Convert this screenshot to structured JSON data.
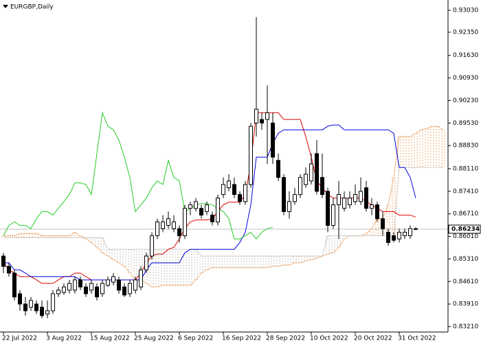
{
  "chart_data": {
    "type": "candlestick",
    "title": "EURGBP,Daily",
    "categories": [
      "22 Jul 2022",
      null,
      null,
      null,
      null,
      null,
      null,
      null,
      "3 Aug 2022",
      null,
      null,
      null,
      null,
      null,
      null,
      null,
      "15 Aug 2022",
      null,
      null,
      null,
      null,
      null,
      null,
      null,
      "25 Aug 2022",
      null,
      null,
      null,
      null,
      null,
      null,
      null,
      "6 Sep 2022",
      null,
      null,
      null,
      null,
      null,
      null,
      null,
      "16 Sep 2022",
      null,
      null,
      null,
      null,
      null,
      null,
      null,
      "28 Sep 2022",
      null,
      null,
      null,
      null,
      null,
      null,
      null,
      "10 Oct 2022",
      null,
      null,
      null,
      null,
      null,
      null,
      null,
      "20 Oct 2022",
      null,
      null,
      null,
      null,
      null,
      null,
      null,
      "31 Oct 2022",
      null,
      null,
      null,
      null,
      null,
      null,
      null,
      null
    ],
    "open": [
      0.854,
      0.8508,
      0.8487,
      0.8423,
      0.8391,
      0.8381,
      0.8391,
      0.8381,
      0.836,
      0.837,
      0.8423,
      0.8427,
      0.8434,
      0.8434,
      0.8466,
      0.8444,
      0.8434,
      0.8444,
      0.8423,
      0.8449,
      0.8459,
      0.8466,
      0.8444,
      0.8423,
      0.8434,
      0.8444,
      0.8497,
      0.854,
      0.8603,
      0.8625,
      0.8635,
      0.8625,
      0.8625,
      0.8603,
      0.8688,
      0.8688,
      0.8688,
      0.8678,
      0.8667,
      0.8646,
      0.8731,
      0.8752,
      0.8762,
      0.8731,
      0.8709,
      0.8762,
      0.8953,
      0.8964,
      0.8964,
      0.8953,
      0.8837,
      0.8784,
      0.8678,
      0.8709,
      0.8731,
      0.8762,
      0.8773,
      0.8858,
      0.8784,
      0.8741,
      0.8635,
      0.8699,
      0.8688,
      0.8699,
      0.8709,
      0.8709,
      0.8752,
      0.8688,
      0.8699,
      0.8656,
      0.8614,
      0.8603,
      0.8593,
      0.8603,
      0.8603,
      0.8625,
      null,
      null,
      null,
      null,
      null
    ],
    "high": [
      0.855,
      0.8519,
      0.8497,
      0.8434,
      0.8413,
      0.8413,
      0.8402,
      0.8402,
      0.8402,
      0.8434,
      0.8444,
      0.8455,
      0.8466,
      0.8476,
      0.8476,
      0.8455,
      0.8466,
      0.8455,
      0.8466,
      0.8476,
      0.8487,
      0.8476,
      0.8455,
      0.8466,
      0.8476,
      0.8508,
      0.855,
      0.8614,
      0.8656,
      0.8667,
      0.8678,
      0.8667,
      0.8635,
      0.8699,
      0.8709,
      0.872,
      0.8699,
      0.8709,
      0.8678,
      0.8731,
      0.8784,
      0.8794,
      0.8784,
      0.8741,
      0.8773,
      0.8953,
      0.9282,
      0.8985,
      0.907,
      0.8985,
      0.8858,
      0.8794,
      0.8741,
      0.8752,
      0.8794,
      0.8815,
      0.8858,
      0.89,
      0.8858,
      0.8752,
      0.872,
      0.8773,
      0.8741,
      0.8741,
      0.8762,
      0.8784,
      0.8773,
      0.872,
      0.8709,
      0.8678,
      0.8625,
      0.8614,
      0.8625,
      0.8625,
      0.8635,
      0.8629,
      null,
      null,
      null,
      null,
      null
    ],
    "low": [
      0.8487,
      0.8476,
      0.8402,
      0.837,
      0.8355,
      0.837,
      0.836,
      0.8347,
      0.8347,
      0.836,
      0.8413,
      0.8419,
      0.8423,
      0.8423,
      0.8434,
      0.8413,
      0.8423,
      0.8402,
      0.8413,
      0.8444,
      0.8449,
      0.8423,
      0.8413,
      0.8413,
      0.8423,
      0.8434,
      0.8487,
      0.8529,
      0.8593,
      0.8614,
      0.8625,
      0.8614,
      0.8582,
      0.8593,
      0.8667,
      0.8678,
      0.8656,
      0.8667,
      0.8635,
      0.8635,
      0.872,
      0.8741,
      0.872,
      0.8699,
      0.8699,
      0.8752,
      0.8911,
      0.8932,
      0.8826,
      0.8826,
      0.8773,
      0.8667,
      0.8656,
      0.8699,
      0.872,
      0.8752,
      0.8762,
      0.8731,
      0.872,
      0.8614,
      0.8625,
      0.8593,
      0.8678,
      0.8688,
      0.8699,
      0.8699,
      0.8678,
      0.8667,
      0.8646,
      0.8603,
      0.8572,
      0.8582,
      0.8582,
      0.8593,
      0.8593,
      0.862,
      null,
      null,
      null,
      null,
      null
    ],
    "close": [
      0.8508,
      0.8487,
      0.8413,
      0.8391,
      0.837,
      0.8402,
      0.837,
      0.8355,
      0.837,
      0.8423,
      0.8434,
      0.8444,
      0.8455,
      0.8466,
      0.8444,
      0.8423,
      0.8455,
      0.8413,
      0.8455,
      0.8466,
      0.8476,
      0.8434,
      0.8419,
      0.8455,
      0.8466,
      0.8497,
      0.854,
      0.8603,
      0.8646,
      0.8646,
      0.8656,
      0.8646,
      0.8603,
      0.8688,
      0.8699,
      0.8709,
      0.8667,
      0.8699,
      0.8646,
      0.872,
      0.8762,
      0.8773,
      0.8731,
      0.8709,
      0.8762,
      0.8943,
      0.8996,
      0.8953,
      0.8985,
      0.8847,
      0.8784,
      0.8678,
      0.8709,
      0.8731,
      0.8784,
      0.8794,
      0.8826,
      0.8741,
      0.8731,
      0.8635,
      0.8699,
      0.8731,
      0.872,
      0.872,
      0.8731,
      0.8741,
      0.8688,
      0.8699,
      0.8656,
      0.8625,
      0.8582,
      0.8589,
      0.8614,
      0.8614,
      0.8625,
      0.86234,
      null,
      null,
      null,
      null,
      null
    ],
    "bull_color": "#ffffff",
    "bear_color": "#000000",
    "lines": [
      {
        "color": "#dd0000",
        "values": [
          0.8519,
          0.8497,
          0.8487,
          0.8476,
          0.8476,
          0.8476,
          0.8466,
          0.8455,
          0.8455,
          0.8455,
          0.8466,
          0.8476,
          0.8476,
          0.8487,
          0.8487,
          0.8476,
          0.8466,
          0.8466,
          0.8466,
          0.8466,
          0.8466,
          0.8466,
          0.8466,
          0.8466,
          0.8466,
          0.8487,
          0.8519,
          0.854,
          0.8546,
          0.8546,
          0.8561,
          0.8567,
          0.8593,
          0.8625,
          0.8646,
          0.8652,
          0.8652,
          0.8652,
          0.8656,
          0.8678,
          0.8699,
          0.8707,
          0.8707,
          0.8707,
          0.8731,
          0.8826,
          0.8985,
          0.8985,
          0.8985,
          0.8985,
          0.8985,
          0.8964,
          0.8964,
          0.8964,
          0.8964,
          0.8911,
          0.8847,
          0.8773,
          0.8752,
          0.8731,
          0.872,
          0.872,
          0.872,
          0.872,
          0.872,
          0.872,
          0.8709,
          0.8699,
          0.8688,
          0.8678,
          0.8678,
          0.8678,
          0.8667,
          0.8667,
          0.8667,
          0.8661,
          null,
          null,
          null,
          null,
          null
        ]
      },
      {
        "color": "#0000dd",
        "values": [
          0.8519,
          0.8519,
          0.8497,
          0.8497,
          0.8487,
          0.8476,
          0.8476,
          0.8476,
          0.8476,
          0.8476,
          0.8476,
          0.8476,
          0.8476,
          0.8476,
          0.8466,
          0.8466,
          0.8466,
          0.8466,
          0.8466,
          0.8466,
          0.8466,
          0.8466,
          0.8466,
          0.8466,
          0.8466,
          0.8466,
          0.8497,
          0.8519,
          0.8519,
          0.8519,
          0.8519,
          0.8519,
          0.8519,
          0.855,
          0.8561,
          0.8561,
          0.8561,
          0.8561,
          0.8561,
          0.8561,
          0.8561,
          0.8561,
          0.8561,
          0.8582,
          0.8614,
          0.8699,
          0.8847,
          0.8847,
          0.8847,
          0.889,
          0.8921,
          0.8932,
          0.8932,
          0.8932,
          0.8932,
          0.8932,
          0.8932,
          0.8932,
          0.8932,
          0.8943,
          0.8947,
          0.8947,
          0.8932,
          0.8932,
          0.8932,
          0.8932,
          0.8932,
          0.8932,
          0.8932,
          0.8932,
          0.8932,
          0.8921,
          0.8815,
          0.8815,
          0.8784,
          0.872,
          null,
          null,
          null,
          null,
          null
        ]
      },
      {
        "color": "#22cc22",
        "values": [
          0.8603,
          0.8635,
          0.8646,
          0.8635,
          0.8635,
          0.8625,
          0.8656,
          0.8678,
          0.8678,
          0.8667,
          0.8688,
          0.8709,
          0.8731,
          0.8767,
          0.8767,
          0.8762,
          0.8731,
          0.8858,
          0.8985,
          0.8943,
          0.8932,
          0.89,
          0.8847,
          0.8784,
          0.8678,
          0.8699,
          0.872,
          0.8752,
          0.8773,
          0.8762,
          0.8837,
          0.8784,
          0.8773,
          0.8678,
          0.8688,
          0.8699,
          0.8703,
          0.8703,
          0.8699,
          0.8688,
          0.8678,
          0.8656,
          0.8593,
          0.8593,
          0.8603,
          0.8614,
          0.8593,
          0.8614,
          0.8625,
          0.8629,
          null,
          null,
          null,
          null,
          null,
          null,
          null,
          null,
          null,
          null,
          null,
          null,
          null,
          null,
          null,
          null,
          null,
          null,
          null,
          null,
          null,
          null,
          null,
          null,
          null,
          null,
          null,
          null,
          null,
          null,
          null
        ]
      }
    ],
    "cloud": {
      "span_a": {
        "color": "#e8924a",
        "values": [
          0.8603,
          0.8603,
          0.8603,
          0.861,
          0.861,
          0.861,
          0.861,
          0.8603,
          0.8603,
          0.8603,
          0.8603,
          0.8603,
          0.8603,
          0.8614,
          0.8603,
          0.8593,
          0.8582,
          0.8567,
          0.855,
          0.854,
          0.8529,
          0.8519,
          0.8508,
          0.8487,
          0.8466,
          0.8466,
          0.8455,
          0.8444,
          0.8444,
          0.8449,
          0.8449,
          0.8449,
          0.8449,
          0.8449,
          0.8449,
          0.8466,
          0.8487,
          0.8497,
          0.8504,
          0.8504,
          0.8504,
          0.8504,
          0.8504,
          0.8504,
          0.8504,
          0.8504,
          0.8504,
          0.8504,
          0.8504,
          0.8508,
          0.8508,
          0.8512,
          0.8512,
          0.8519,
          0.8519,
          0.8525,
          0.8529,
          0.8533,
          0.854,
          0.8546,
          0.855,
          0.8567,
          0.8593,
          0.8603,
          0.8603,
          0.8603,
          0.861,
          0.8625,
          0.8656,
          0.8656,
          0.8699,
          0.8784,
          0.8911,
          0.8911,
          0.8911,
          0.8921,
          0.8932,
          0.8936,
          0.8943,
          0.8943,
          0.8932
        ]
      },
      "span_b": {
        "color": "#b8b0a8",
        "values": [
          0.8597,
          0.8597,
          0.8597,
          0.8597,
          0.8597,
          0.8597,
          0.8597,
          0.8597,
          0.8597,
          0.8597,
          0.8597,
          0.8597,
          0.8597,
          0.8597,
          0.8597,
          0.8597,
          0.8597,
          0.8597,
          0.8597,
          0.8561,
          0.8561,
          0.8561,
          0.8561,
          0.8561,
          0.8561,
          0.8561,
          0.8561,
          0.8561,
          0.8561,
          0.8561,
          0.8561,
          0.8561,
          0.8561,
          0.8561,
          0.8561,
          0.8561,
          0.854,
          0.854,
          0.854,
          0.854,
          0.854,
          0.854,
          0.854,
          0.854,
          0.854,
          0.854,
          0.854,
          0.854,
          0.854,
          0.854,
          0.854,
          0.854,
          0.854,
          0.854,
          0.854,
          0.854,
          0.854,
          0.854,
          0.854,
          0.8603,
          0.8603,
          0.8603,
          0.8603,
          0.8603,
          0.8603,
          0.8603,
          0.8603,
          0.8603,
          0.8603,
          0.8603,
          0.8603,
          0.8603,
          0.8815,
          0.8815,
          0.8815,
          0.8815,
          0.8815,
          0.8815,
          0.8815,
          0.8815,
          0.8815
        ]
      }
    },
    "last_price": 0.86234,
    "last_price_color": "#c0c0c0",
    "ylim": [
      0.8304,
      0.9335
    ],
    "yticks": [
      {
        "value": 0.9303,
        "label": "0.93030"
      },
      {
        "value": 0.9235,
        "label": "0.92350"
      },
      {
        "value": 0.9163,
        "label": "0.91630"
      },
      {
        "value": 0.9093,
        "label": "0.90930"
      },
      {
        "value": 0.9023,
        "label": "0.90230"
      },
      {
        "value": 0.8953,
        "label": "0.89530"
      },
      {
        "value": 0.8883,
        "label": "0.88830"
      },
      {
        "value": 0.8811,
        "label": "0.88110"
      },
      {
        "value": 0.8741,
        "label": "0.87410"
      },
      {
        "value": 0.8671,
        "label": "0.86710"
      },
      {
        "value": 0.8601,
        "label": "0.86010"
      },
      {
        "value": 0.8531,
        "label": "0.85310"
      },
      {
        "value": 0.8461,
        "label": "0.84610"
      },
      {
        "value": 0.8391,
        "label": "0.83910"
      },
      {
        "value": 0.8321,
        "label": "0.83210"
      }
    ]
  }
}
